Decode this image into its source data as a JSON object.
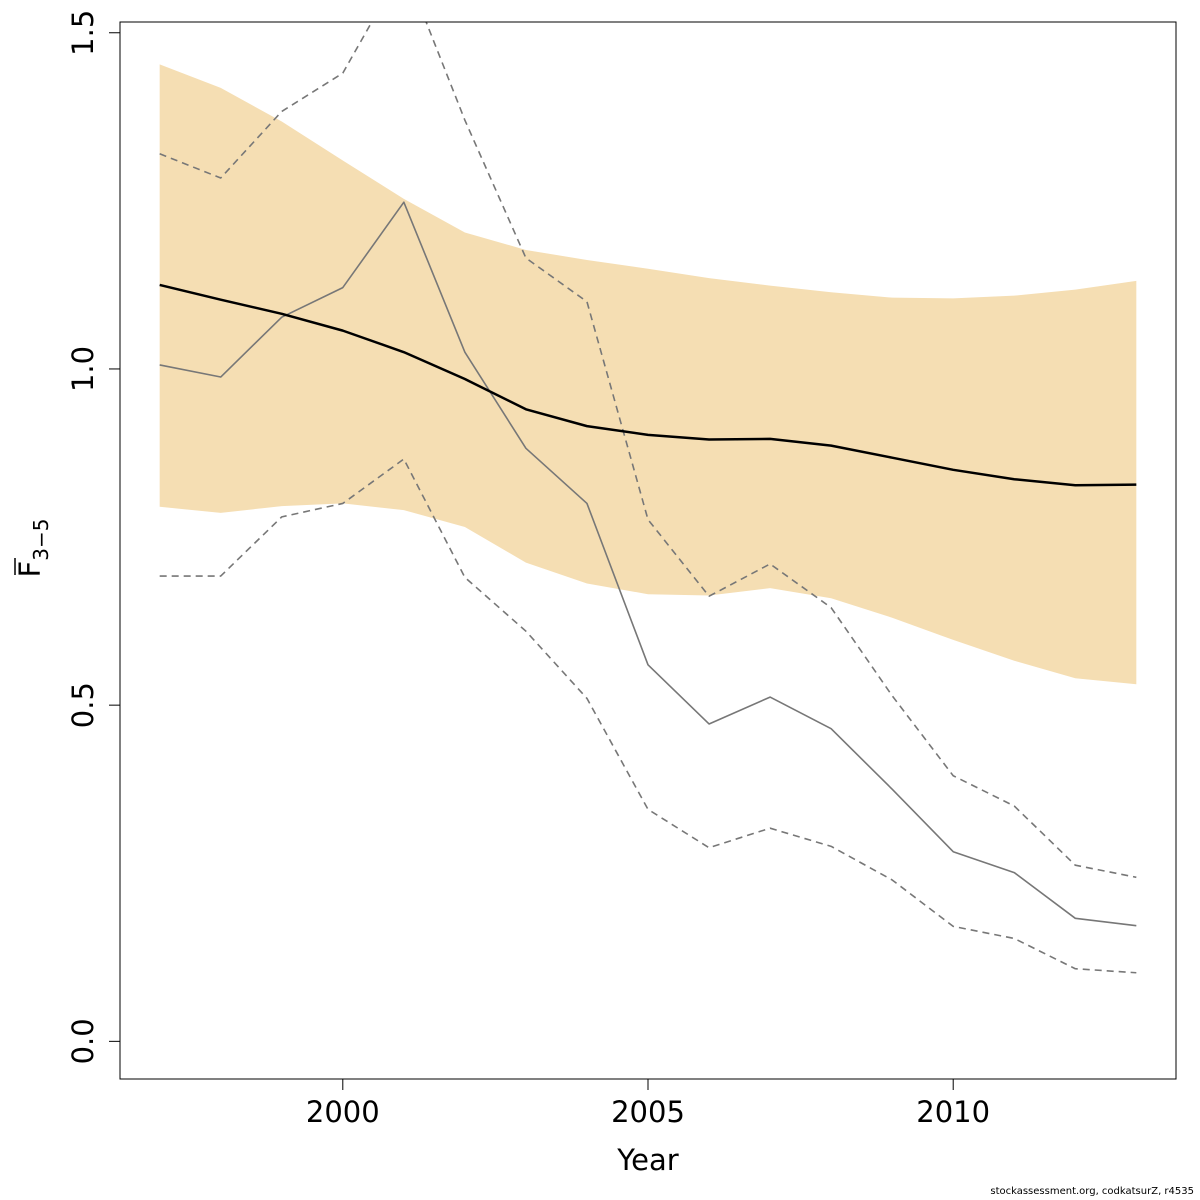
{
  "chart_data": {
    "type": "line",
    "xlabel": "Year",
    "ylabel": {
      "main": "F",
      "subscript": "3−5",
      "overline": true
    },
    "xlim": [
      1996.35,
      2013.65
    ],
    "ylim": [
      -0.056,
      1.516
    ],
    "x_ticks": [
      2000,
      2005,
      2010
    ],
    "y_ticks": [
      0.0,
      0.5,
      1.0,
      1.5
    ],
    "y_tick_labels": [
      "0.0",
      "0.5",
      "1.0",
      "1.5"
    ],
    "grid": false,
    "legend": "none",
    "colors": {
      "band": "#f5deb3",
      "estimate": "#000000",
      "series": "#777777"
    },
    "years": [
      1997,
      1998,
      1999,
      2000,
      2001,
      2002,
      2003,
      2004,
      2005,
      2006,
      2007,
      2008,
      2009,
      2010,
      2011,
      2012,
      2013
    ],
    "band": {
      "upper": [
        1.453,
        1.418,
        1.368,
        1.31,
        1.253,
        1.203,
        1.177,
        1.162,
        1.149,
        1.135,
        1.124,
        1.114,
        1.106,
        1.105,
        1.109,
        1.118,
        1.131
      ],
      "lower": [
        0.795,
        0.786,
        0.796,
        0.8,
        0.79,
        0.765,
        0.712,
        0.681,
        0.665,
        0.663,
        0.674,
        0.659,
        0.63,
        0.597,
        0.566,
        0.54,
        0.531
      ]
    },
    "series": [
      {
        "style": "solid-black",
        "values": [
          1.125,
          1.103,
          1.082,
          1.057,
          1.025,
          0.985,
          0.94,
          0.915,
          0.902,
          0.895,
          0.896,
          0.886,
          0.868,
          0.85,
          0.836,
          0.827,
          0.828
        ]
      },
      {
        "style": "solid-gray",
        "values": [
          1.006,
          0.988,
          1.077,
          1.121,
          1.248,
          1.025,
          0.882,
          0.8,
          0.56,
          0.472,
          0.512,
          0.465,
          0.375,
          0.282,
          0.251,
          0.183,
          0.172
        ]
      },
      {
        "style": "dashed-upper",
        "values": [
          1.32,
          1.284,
          1.383,
          1.44,
          1.6,
          1.37,
          1.165,
          1.1,
          0.776,
          0.662,
          0.71,
          0.645,
          0.514,
          0.395,
          0.35,
          0.262,
          0.244
        ]
      },
      {
        "style": "dashed-lower",
        "values": [
          0.692,
          0.692,
          0.78,
          0.8,
          0.866,
          0.69,
          0.61,
          0.51,
          0.345,
          0.288,
          0.317,
          0.29,
          0.24,
          0.171,
          0.153,
          0.108,
          0.102
        ]
      }
    ]
  },
  "credit": "stockassessment.org, codkatsurZ, r4535"
}
